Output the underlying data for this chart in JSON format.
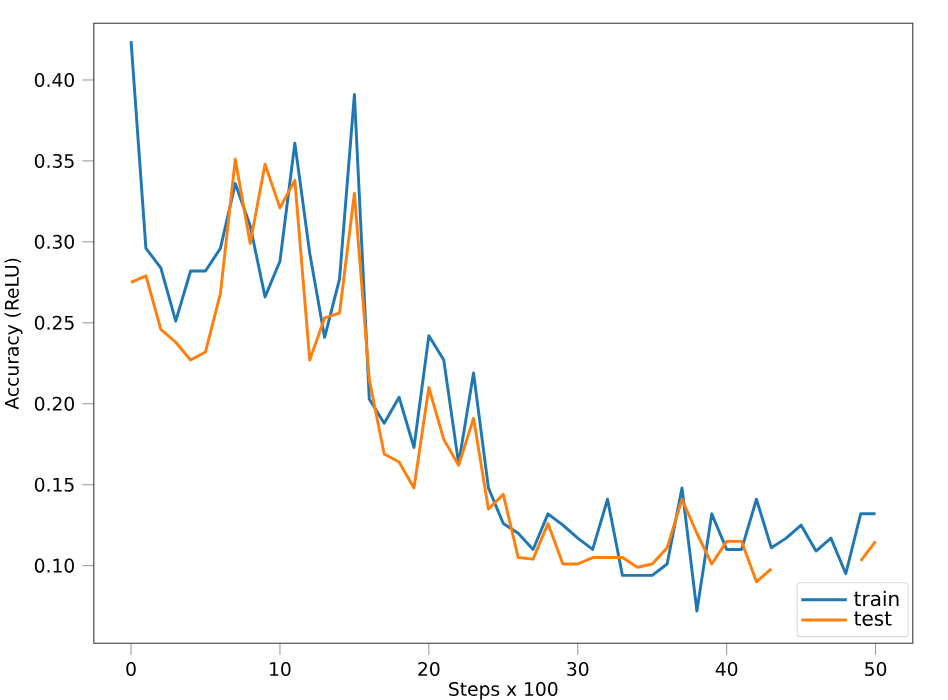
{
  "chart_data": {
    "type": "line",
    "xlabel": "Steps x 100",
    "ylabel": "Accuracy (ReLU)",
    "x": [
      0,
      1,
      2,
      3,
      4,
      5,
      6,
      7,
      8,
      9,
      10,
      11,
      12,
      13,
      14,
      15,
      16,
      17,
      18,
      19,
      20,
      21,
      22,
      23,
      24,
      25,
      26,
      27,
      28,
      29,
      30,
      31,
      32,
      33,
      34,
      35,
      36,
      37,
      38,
      39,
      40,
      41,
      42,
      43,
      44,
      45,
      46,
      47,
      48,
      49,
      50
    ],
    "series": [
      {
        "name": "train",
        "color": "#1f77b4",
        "values": [
          0.424,
          0.296,
          0.284,
          0.251,
          0.282,
          0.282,
          0.296,
          0.336,
          0.31,
          0.266,
          0.288,
          0.361,
          0.293,
          0.241,
          0.277,
          0.391,
          0.203,
          0.188,
          0.204,
          0.173,
          0.242,
          0.227,
          0.163,
          0.219,
          0.148,
          0.126,
          0.12,
          0.11,
          0.132,
          0.125,
          0.117,
          0.11,
          0.141,
          0.094,
          0.094,
          0.094,
          0.101,
          0.148,
          0.072,
          0.132,
          0.11,
          0.11,
          0.141,
          0.111,
          0.117,
          0.125,
          0.109,
          0.117,
          0.095,
          0.132,
          0.132
        ]
      },
      {
        "name": "test",
        "color": "#ff7f0e",
        "values": [
          0.275,
          0.279,
          0.246,
          0.238,
          0.227,
          0.232,
          0.268,
          0.351,
          0.299,
          0.348,
          0.321,
          0.338,
          0.227,
          0.253,
          0.256,
          0.33,
          0.215,
          0.169,
          0.164,
          0.148,
          0.21,
          0.178,
          0.162,
          0.191,
          0.135,
          0.144,
          0.105,
          0.104,
          0.126,
          0.101,
          0.101,
          0.105,
          0.105,
          0.105,
          0.099,
          0.101,
          0.111,
          0.141,
          0.12,
          0.101,
          0.115,
          0.115,
          0.09,
          0.098,
          null,
          null,
          null,
          null,
          null,
          0.103,
          0.115
        ]
      }
    ],
    "xlim": [
      -2.5,
      52.5
    ],
    "ylim": [
      0.052,
      0.435
    ],
    "xticks": [
      0,
      10,
      20,
      30,
      40,
      50
    ],
    "yticks": [
      {
        "value": 0.1,
        "label": "0.10"
      },
      0.15,
      {
        "value": 0.2,
        "label": "0.20"
      },
      0.25,
      {
        "value": 0.3,
        "label": "0.30"
      },
      0.35,
      {
        "value": 0.4,
        "label": "0.40"
      }
    ],
    "legend": "bottom right",
    "grid": false
  }
}
